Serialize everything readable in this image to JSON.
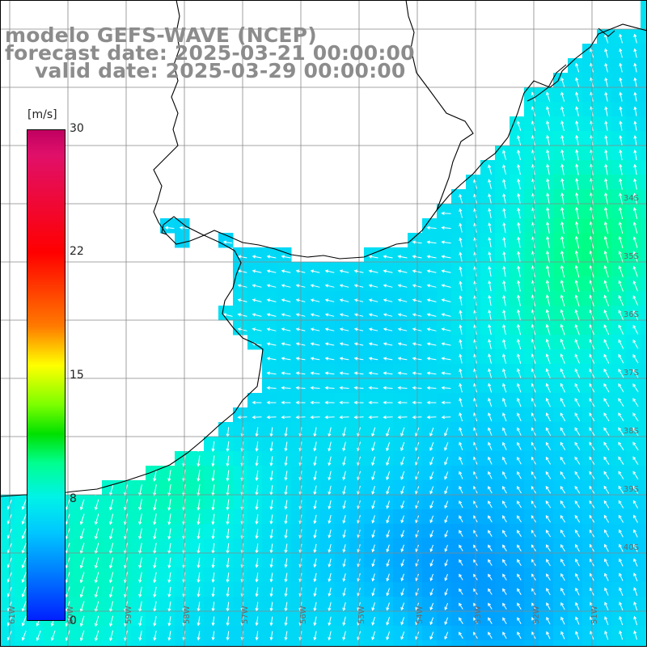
{
  "title": {
    "line1": "modelo GEFS-WAVE (NCEP)",
    "line2": "forecast date: 2025-03-21 00:00:00",
    "line3": "valid date: 2025-03-29 00:00:00"
  },
  "colorbar": {
    "unit": "[m/s]",
    "tick_labels": [
      "30",
      "22",
      "15",
      "8",
      "0"
    ],
    "ticks": [
      30,
      22,
      15,
      8,
      0
    ],
    "range": [
      0,
      30
    ],
    "colors": [
      "#0020ff",
      "#0080ff",
      "#00c8ff",
      "#00f2e8",
      "#00ff90",
      "#00e000",
      "#7cff00",
      "#ffff00",
      "#ff7a00",
      "#ff0000",
      "#e0106a",
      "#c00060"
    ]
  },
  "map": {
    "field": "wind speed with direction arrows",
    "land_color": "#ffffff",
    "grid": true,
    "lat_labels": [
      "34S",
      "35S",
      "36S",
      "37S",
      "38S",
      "39S",
      "40S"
    ],
    "lon_labels": [
      "61W",
      "60W",
      "59W",
      "58W",
      "57W",
      "56W",
      "55W",
      "54W",
      "53W",
      "52W",
      "51W"
    ],
    "arrow_color": "#ffffff"
  }
}
